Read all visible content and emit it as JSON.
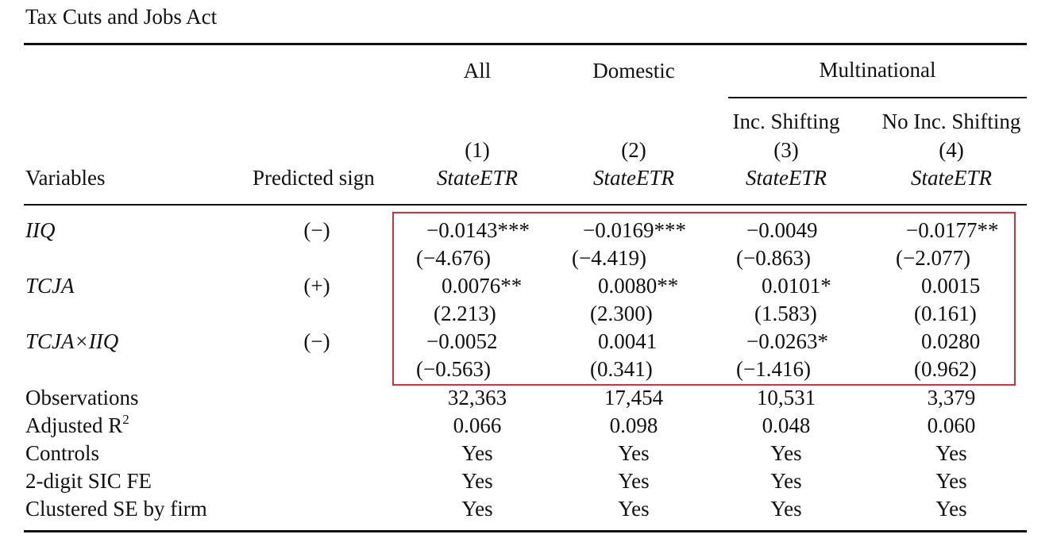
{
  "caption": "Tax Cuts and Jobs Act",
  "colors": {
    "highlight": "#d32f3a",
    "text": "#111111"
  },
  "header": {
    "group_all": "All",
    "group_domestic": "Domestic",
    "group_multinational": "Multinational",
    "sub_inc_shifting": "Inc. Shifting",
    "sub_no_inc_shifting": "No Inc. Shifting",
    "col_numbers": [
      "(1)",
      "(2)",
      "(3)",
      "(4)"
    ],
    "dep_var": [
      "StateETR",
      "StateETR",
      "StateETR",
      "StateETR"
    ],
    "variables_label": "Variables",
    "predicted_sign_label": "Predicted sign"
  },
  "coefficients": [
    {
      "name": "IIQ",
      "sign": "(−)",
      "coef": [
        "−0.0143***",
        "−0.0169***",
        "−0.0049",
        "−0.0177**"
      ],
      "tstat": [
        "(−4.676)",
        "(−4.419)",
        "(−0.863)",
        "(−2.077)"
      ]
    },
    {
      "name": "TCJA",
      "sign": "(+)",
      "coef": [
        "0.0076**",
        "0.0080**",
        "0.0101*",
        "0.0015"
      ],
      "tstat": [
        "(2.213)",
        "(2.300)",
        "(1.583)",
        "(0.161)"
      ]
    },
    {
      "name": "TCJA×IIQ",
      "sign": "(−)",
      "coef": [
        "−0.0052",
        "0.0041",
        "−0.0263*",
        "0.0280"
      ],
      "tstat": [
        "(−0.563)",
        "(0.341)",
        "(−1.416)",
        "(0.962)"
      ]
    }
  ],
  "stats": [
    {
      "label": "Observations",
      "values": [
        "32,363",
        "17,454",
        "10,531",
        "3,379"
      ]
    },
    {
      "label": "Adjusted R",
      "sup": "2",
      "values": [
        "0.066",
        "0.098",
        "0.048",
        "0.060"
      ]
    },
    {
      "label": "Controls",
      "values": [
        "Yes",
        "Yes",
        "Yes",
        "Yes"
      ]
    },
    {
      "label": "2-digit SIC FE",
      "values": [
        "Yes",
        "Yes",
        "Yes",
        "Yes"
      ]
    },
    {
      "label": "Clustered SE by firm",
      "values": [
        "Yes",
        "Yes",
        "Yes",
        "Yes"
      ]
    }
  ]
}
